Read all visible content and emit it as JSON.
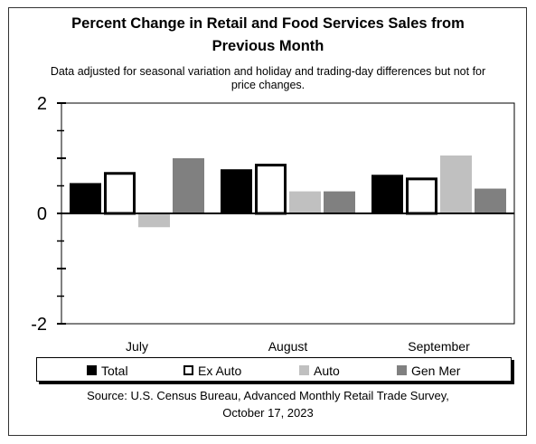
{
  "title_line1": "Percent Change in Retail and Food Services Sales from",
  "title_line2": "Previous Month",
  "subtitle_line1": "Data adjusted for seasonal variation and holiday and trading-day differences but not for",
  "subtitle_line2": "price changes.",
  "source_line1": "Source: U.S. Census Bureau, Advanced Monthly Retail Trade Survey,",
  "source_line2": "October 17, 2023",
  "chart_data": {
    "type": "bar",
    "categories": [
      "July",
      "August",
      "September"
    ],
    "series": [
      {
        "name": "Total",
        "values": [
          0.55,
          0.8,
          0.7
        ],
        "color": "#000000",
        "fill": "#000000"
      },
      {
        "name": "Ex Auto",
        "values": [
          0.75,
          0.9,
          0.65
        ],
        "color": "#000000",
        "fill": "#ffffff"
      },
      {
        "name": "Auto",
        "values": [
          -0.25,
          0.4,
          1.05
        ],
        "color": "#c0c0c0",
        "fill": "#c0c0c0"
      },
      {
        "name": "Gen Mer",
        "values": [
          1.0,
          0.4,
          0.45
        ],
        "color": "#808080",
        "fill": "#808080"
      }
    ],
    "ylim": [
      -2,
      2
    ],
    "yticks": [
      2,
      0,
      -2
    ],
    "ytick_labels": [
      "2",
      "0",
      "-2"
    ],
    "grid": false,
    "legend_position": "bottom"
  }
}
